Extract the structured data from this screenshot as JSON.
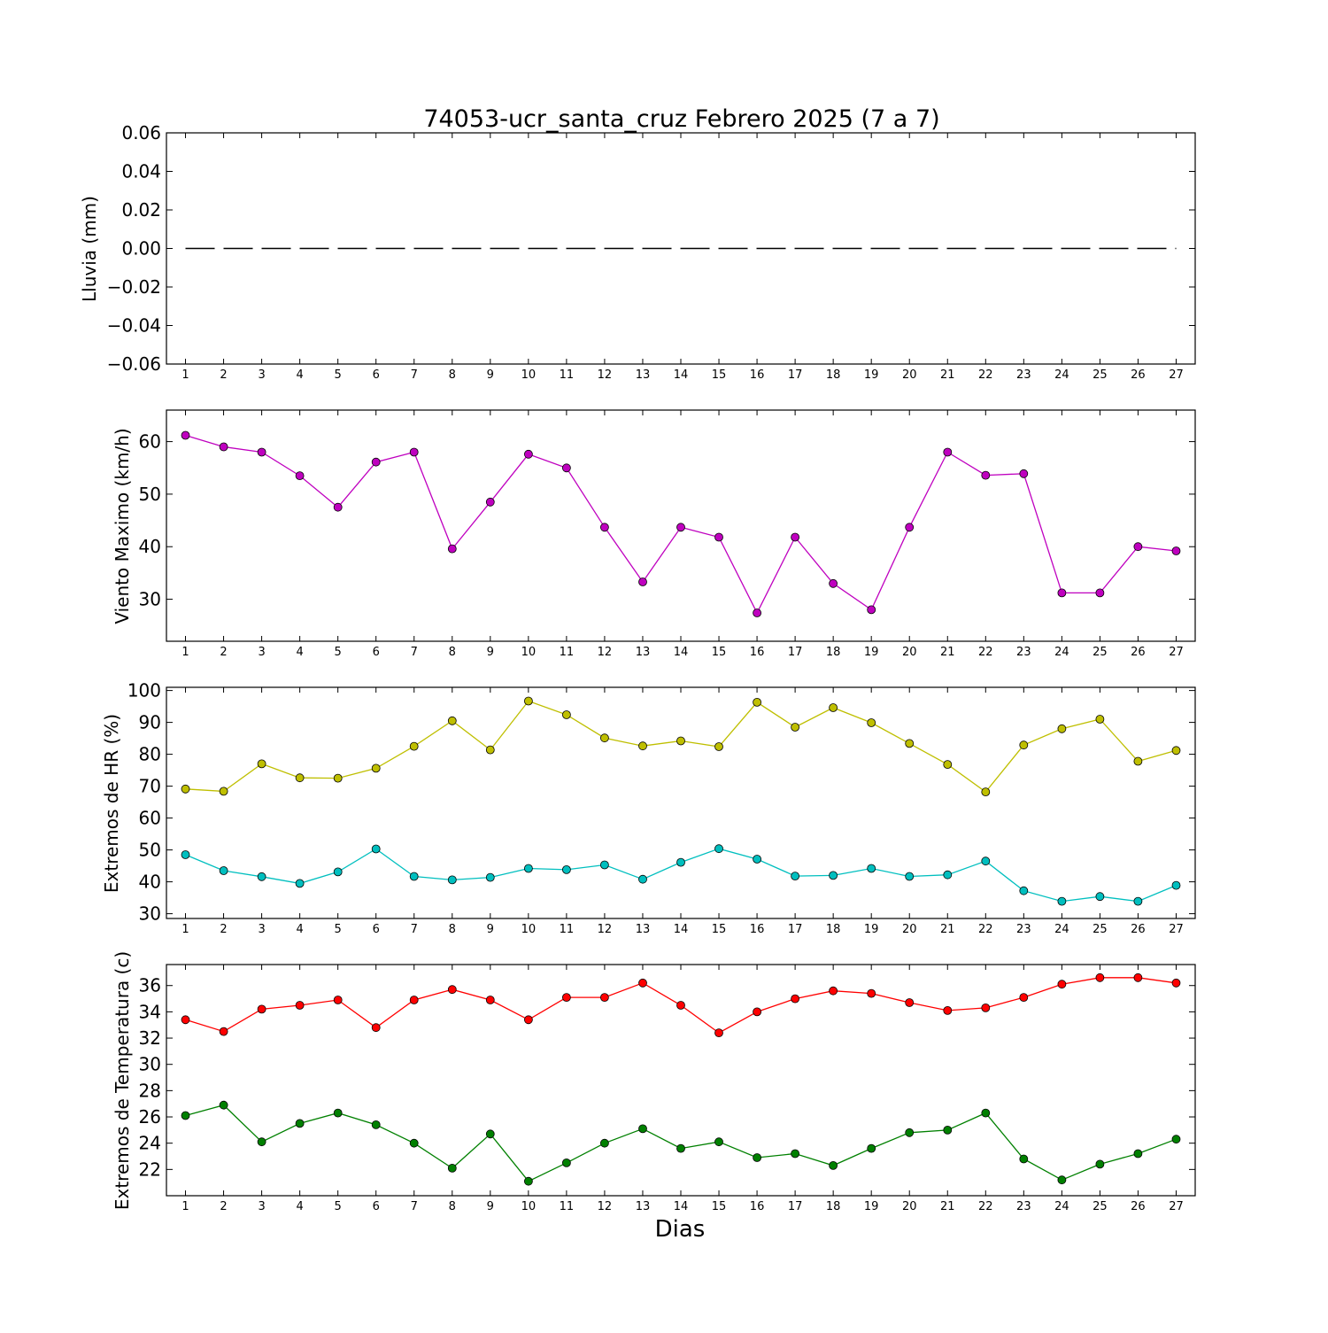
{
  "figure": {
    "title": "74053-ucr_santa_cruz Febrero 2025  (7 a 7)",
    "xlabel": "Dias"
  },
  "chart_data": [
    {
      "type": "line",
      "ylabel": "Lluvia (mm)",
      "ylim": [
        -0.06,
        0.06
      ],
      "yticks": [
        0.06,
        0.04,
        0.02,
        0.0,
        -0.02,
        -0.04,
        -0.06
      ],
      "ytick_labels": [
        "0.06",
        "0.04",
        "0.02",
        "0.00",
        "−0.02",
        "−0.04",
        "−0.06"
      ],
      "xlim": [
        0.5,
        27.5
      ],
      "x": [
        1,
        2,
        3,
        4,
        5,
        6,
        7,
        8,
        9,
        10,
        11,
        12,
        13,
        14,
        15,
        16,
        17,
        18,
        19,
        20,
        21,
        22,
        23,
        24,
        25,
        26,
        27
      ],
      "grid": false,
      "series": [
        {
          "style": "dashed",
          "marker": "none",
          "color": "#000000",
          "values": [
            0,
            0,
            0,
            0,
            0,
            0,
            0,
            0,
            0,
            0,
            0,
            0,
            0,
            0,
            0,
            0,
            0,
            0,
            0,
            0,
            0,
            0,
            0,
            0,
            0,
            0,
            0
          ]
        }
      ]
    },
    {
      "type": "line",
      "ylabel": "Viento Maximo (km/h)",
      "ylim": [
        22,
        66
      ],
      "yticks": [
        30,
        40,
        50,
        60
      ],
      "ytick_labels": [
        "30",
        "40",
        "50",
        "60"
      ],
      "xlim": [
        0.5,
        27.5
      ],
      "x": [
        1,
        2,
        3,
        4,
        5,
        6,
        7,
        8,
        9,
        10,
        11,
        12,
        13,
        14,
        15,
        16,
        17,
        18,
        19,
        20,
        21,
        22,
        23,
        24,
        25,
        26,
        27
      ],
      "grid": false,
      "series": [
        {
          "style": "solid",
          "marker": "circle",
          "color": "#bf00bf",
          "values": [
            61.2,
            59.0,
            58.0,
            53.5,
            47.5,
            56.1,
            58.0,
            39.6,
            48.5,
            57.6,
            55.0,
            43.7,
            33.3,
            43.7,
            41.8,
            27.4,
            41.8,
            33.0,
            28.0,
            43.7,
            58.0,
            53.6,
            53.9,
            31.2,
            31.2,
            40.0,
            39.2
          ]
        }
      ]
    },
    {
      "type": "line",
      "ylabel": "Extremos de HR (%)",
      "ylim": [
        28.5,
        101
      ],
      "yticks": [
        30,
        40,
        50,
        60,
        70,
        80,
        90,
        100
      ],
      "ytick_labels": [
        "30",
        "40",
        "50",
        "60",
        "70",
        "80",
        "90",
        "100"
      ],
      "xlim": [
        0.5,
        27.5
      ],
      "x": [
        1,
        2,
        3,
        4,
        5,
        6,
        7,
        8,
        9,
        10,
        11,
        12,
        13,
        14,
        15,
        16,
        17,
        18,
        19,
        20,
        21,
        22,
        23,
        24,
        25,
        26,
        27
      ],
      "grid": false,
      "series": [
        {
          "style": "solid",
          "marker": "circle",
          "color": "#bfbf00",
          "values": [
            69.1,
            68.4,
            77.0,
            72.6,
            72.5,
            75.6,
            82.5,
            90.5,
            81.4,
            96.7,
            92.4,
            85.1,
            82.6,
            84.2,
            82.4,
            96.3,
            88.5,
            94.6,
            89.9,
            83.4,
            76.8,
            68.2,
            82.9,
            88.0,
            91.0,
            77.8,
            81.2
          ]
        },
        {
          "style": "solid",
          "marker": "circle",
          "color": "#00bfbf",
          "values": [
            48.5,
            43.5,
            41.6,
            39.5,
            43.1,
            50.3,
            41.7,
            40.6,
            41.4,
            44.2,
            43.8,
            45.3,
            40.8,
            46.1,
            50.4,
            47.1,
            41.8,
            42.0,
            44.2,
            41.7,
            42.2,
            46.5,
            37.2,
            33.9,
            35.4,
            33.9,
            38.9
          ]
        }
      ]
    },
    {
      "type": "line",
      "ylabel": "Extremos de Temperatura (c)",
      "ylim": [
        20,
        37.6
      ],
      "yticks": [
        22,
        24,
        26,
        28,
        30,
        32,
        34,
        36
      ],
      "ytick_labels": [
        "22",
        "24",
        "26",
        "28",
        "30",
        "32",
        "34",
        "36"
      ],
      "xlim": [
        0.5,
        27.5
      ],
      "x": [
        1,
        2,
        3,
        4,
        5,
        6,
        7,
        8,
        9,
        10,
        11,
        12,
        13,
        14,
        15,
        16,
        17,
        18,
        19,
        20,
        21,
        22,
        23,
        24,
        25,
        26,
        27
      ],
      "grid": false,
      "series": [
        {
          "style": "solid",
          "marker": "circle",
          "color": "#ff0000",
          "values": [
            33.4,
            32.5,
            34.2,
            34.5,
            34.9,
            32.8,
            34.9,
            35.7,
            34.9,
            33.4,
            35.1,
            35.1,
            36.2,
            34.5,
            32.4,
            34.0,
            35.0,
            35.6,
            35.4,
            34.7,
            34.1,
            34.3,
            35.1,
            36.1,
            36.6,
            36.6,
            36.2
          ]
        },
        {
          "style": "solid",
          "marker": "circle",
          "color": "#008000",
          "values": [
            26.1,
            26.9,
            24.1,
            25.5,
            26.3,
            25.4,
            24.0,
            22.1,
            24.7,
            21.1,
            22.5,
            24.0,
            25.1,
            23.6,
            24.1,
            22.9,
            23.2,
            22.3,
            23.6,
            24.8,
            25.0,
            26.3,
            22.8,
            21.2,
            22.4,
            23.2,
            24.3
          ]
        }
      ]
    }
  ]
}
